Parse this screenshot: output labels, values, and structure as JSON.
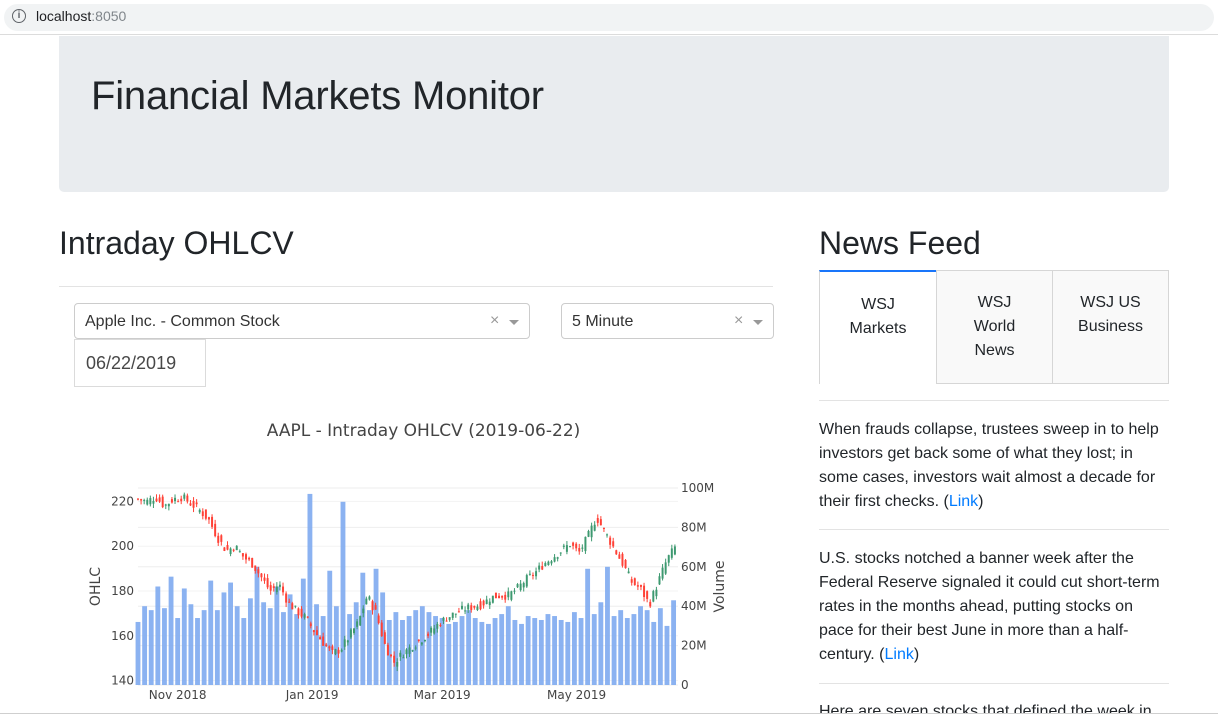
{
  "browser": {
    "host": "localhost",
    "port": ":8050"
  },
  "header": {
    "title": "Financial Markets Monitor"
  },
  "left": {
    "heading": "Intraday OHLCV",
    "stock_select": {
      "value": "Apple Inc. - Common Stock",
      "clear": "×"
    },
    "interval_select": {
      "value": "5 Minute",
      "clear": "×"
    },
    "date": "06/22/2019"
  },
  "chart_data": {
    "type": "candlestick+bar",
    "title": "AAPL - Intraday OHLCV (2019-06-22)",
    "ylabel_left": "OHLC",
    "ylabel_right": "Volume",
    "ylim_left": [
      138,
      226
    ],
    "ylim_right": [
      0,
      100
    ],
    "left_ticks": [
      "140",
      "160",
      "180",
      "200",
      "220"
    ],
    "right_ticks": [
      "0",
      "20M",
      "40M",
      "60M",
      "80M",
      "100M"
    ],
    "x_ticks": [
      "Nov 2018",
      "Jan 2019",
      "Mar 2019",
      "May 2019"
    ],
    "x_tick_days": [
      18,
      79,
      138,
      199
    ],
    "x_range_days": [
      0,
      245
    ],
    "close_series": [
      [
        0,
        221
      ],
      [
        4,
        220
      ],
      [
        8,
        222
      ],
      [
        12,
        218
      ],
      [
        16,
        221
      ],
      [
        20,
        222
      ],
      [
        24,
        219
      ],
      [
        28,
        216
      ],
      [
        32,
        212
      ],
      [
        36,
        204
      ],
      [
        40,
        198
      ],
      [
        44,
        200
      ],
      [
        48,
        195
      ],
      [
        52,
        192
      ],
      [
        56,
        186
      ],
      [
        60,
        180
      ],
      [
        64,
        183
      ],
      [
        68,
        175
      ],
      [
        72,
        171
      ],
      [
        76,
        168
      ],
      [
        80,
        162
      ],
      [
        84,
        157
      ],
      [
        88,
        152
      ],
      [
        92,
        154
      ],
      [
        96,
        160
      ],
      [
        100,
        166
      ],
      [
        104,
        178
      ],
      [
        108,
        170
      ],
      [
        112,
        156
      ],
      [
        116,
        148
      ],
      [
        120,
        152
      ],
      [
        124,
        155
      ],
      [
        128,
        158
      ],
      [
        132,
        161
      ],
      [
        136,
        165
      ],
      [
        140,
        168
      ],
      [
        144,
        170
      ],
      [
        148,
        172
      ],
      [
        152,
        173
      ],
      [
        156,
        174
      ],
      [
        160,
        177
      ],
      [
        164,
        178
      ],
      [
        168,
        178
      ],
      [
        172,
        181
      ],
      [
        176,
        185
      ],
      [
        180,
        188
      ],
      [
        184,
        192
      ],
      [
        188,
        195
      ],
      [
        192,
        198
      ],
      [
        196,
        201
      ],
      [
        200,
        197
      ],
      [
        204,
        204
      ],
      [
        208,
        213
      ],
      [
        212,
        206
      ],
      [
        216,
        199
      ],
      [
        220,
        192
      ],
      [
        224,
        184
      ],
      [
        228,
        181
      ],
      [
        232,
        174
      ],
      [
        236,
        184
      ],
      [
        240,
        194
      ],
      [
        244,
        200
      ]
    ],
    "volume_series": [
      [
        0,
        32
      ],
      [
        3,
        40
      ],
      [
        6,
        38
      ],
      [
        9,
        50
      ],
      [
        12,
        39
      ],
      [
        15,
        55
      ],
      [
        18,
        34
      ],
      [
        21,
        49
      ],
      [
        24,
        41
      ],
      [
        27,
        34
      ],
      [
        30,
        38
      ],
      [
        33,
        53
      ],
      [
        36,
        38
      ],
      [
        39,
        47
      ],
      [
        42,
        52
      ],
      [
        45,
        40
      ],
      [
        48,
        34
      ],
      [
        51,
        44
      ],
      [
        54,
        60
      ],
      [
        57,
        42
      ],
      [
        60,
        39
      ],
      [
        63,
        50
      ],
      [
        66,
        37
      ],
      [
        69,
        46
      ],
      [
        72,
        36
      ],
      [
        75,
        54
      ],
      [
        78,
        97
      ],
      [
        81,
        41
      ],
      [
        84,
        35
      ],
      [
        87,
        58
      ],
      [
        90,
        40
      ],
      [
        93,
        93
      ],
      [
        96,
        36
      ],
      [
        99,
        42
      ],
      [
        102,
        57
      ],
      [
        105,
        38
      ],
      [
        108,
        59
      ],
      [
        111,
        47
      ],
      [
        114,
        33
      ],
      [
        117,
        37
      ],
      [
        120,
        33
      ],
      [
        123,
        35
      ],
      [
        126,
        38
      ],
      [
        129,
        40
      ],
      [
        132,
        37
      ],
      [
        135,
        35
      ],
      [
        138,
        34
      ],
      [
        141,
        31
      ],
      [
        144,
        32
      ],
      [
        147,
        35
      ],
      [
        150,
        38
      ],
      [
        153,
        34
      ],
      [
        156,
        32
      ],
      [
        159,
        31
      ],
      [
        162,
        34
      ],
      [
        165,
        36
      ],
      [
        168,
        40
      ],
      [
        171,
        33
      ],
      [
        174,
        31
      ],
      [
        177,
        35
      ],
      [
        180,
        34
      ],
      [
        183,
        33
      ],
      [
        186,
        36
      ],
      [
        189,
        35
      ],
      [
        192,
        33
      ],
      [
        195,
        32
      ],
      [
        198,
        37
      ],
      [
        201,
        34
      ],
      [
        204,
        59
      ],
      [
        207,
        36
      ],
      [
        210,
        42
      ],
      [
        213,
        60
      ],
      [
        216,
        35
      ],
      [
        219,
        38
      ],
      [
        222,
        34
      ],
      [
        225,
        36
      ],
      [
        228,
        40
      ],
      [
        231,
        38
      ],
      [
        234,
        32
      ],
      [
        237,
        39
      ],
      [
        240,
        30
      ],
      [
        243,
        43
      ]
    ],
    "up_color": "#3d9970",
    "down_color": "#ff4136",
    "volume_color": "#7eaaf0"
  },
  "news": {
    "heading": "News Feed",
    "tabs": [
      {
        "lines": [
          "WSJ",
          "Markets"
        ]
      },
      {
        "lines": [
          "WSJ",
          "World",
          "News"
        ]
      },
      {
        "lines": [
          "WSJ US",
          "Business"
        ]
      }
    ],
    "items": [
      {
        "text": "When frauds collapse, trustees sweep in to help investors get back some of what they lost; in some cases, investors wait almost a decade for their first checks. (",
        "link": "Link",
        "tail": ")"
      },
      {
        "text": "U.S. stocks notched a banner week after the Federal Reserve signaled it could cut short-term rates in the months ahead, putting stocks on pace for their best June in more than a half-century. (",
        "link": "Link",
        "tail": ")"
      },
      {
        "text": "Here are seven stocks that defined the week in",
        "link": "",
        "tail": ""
      }
    ]
  }
}
